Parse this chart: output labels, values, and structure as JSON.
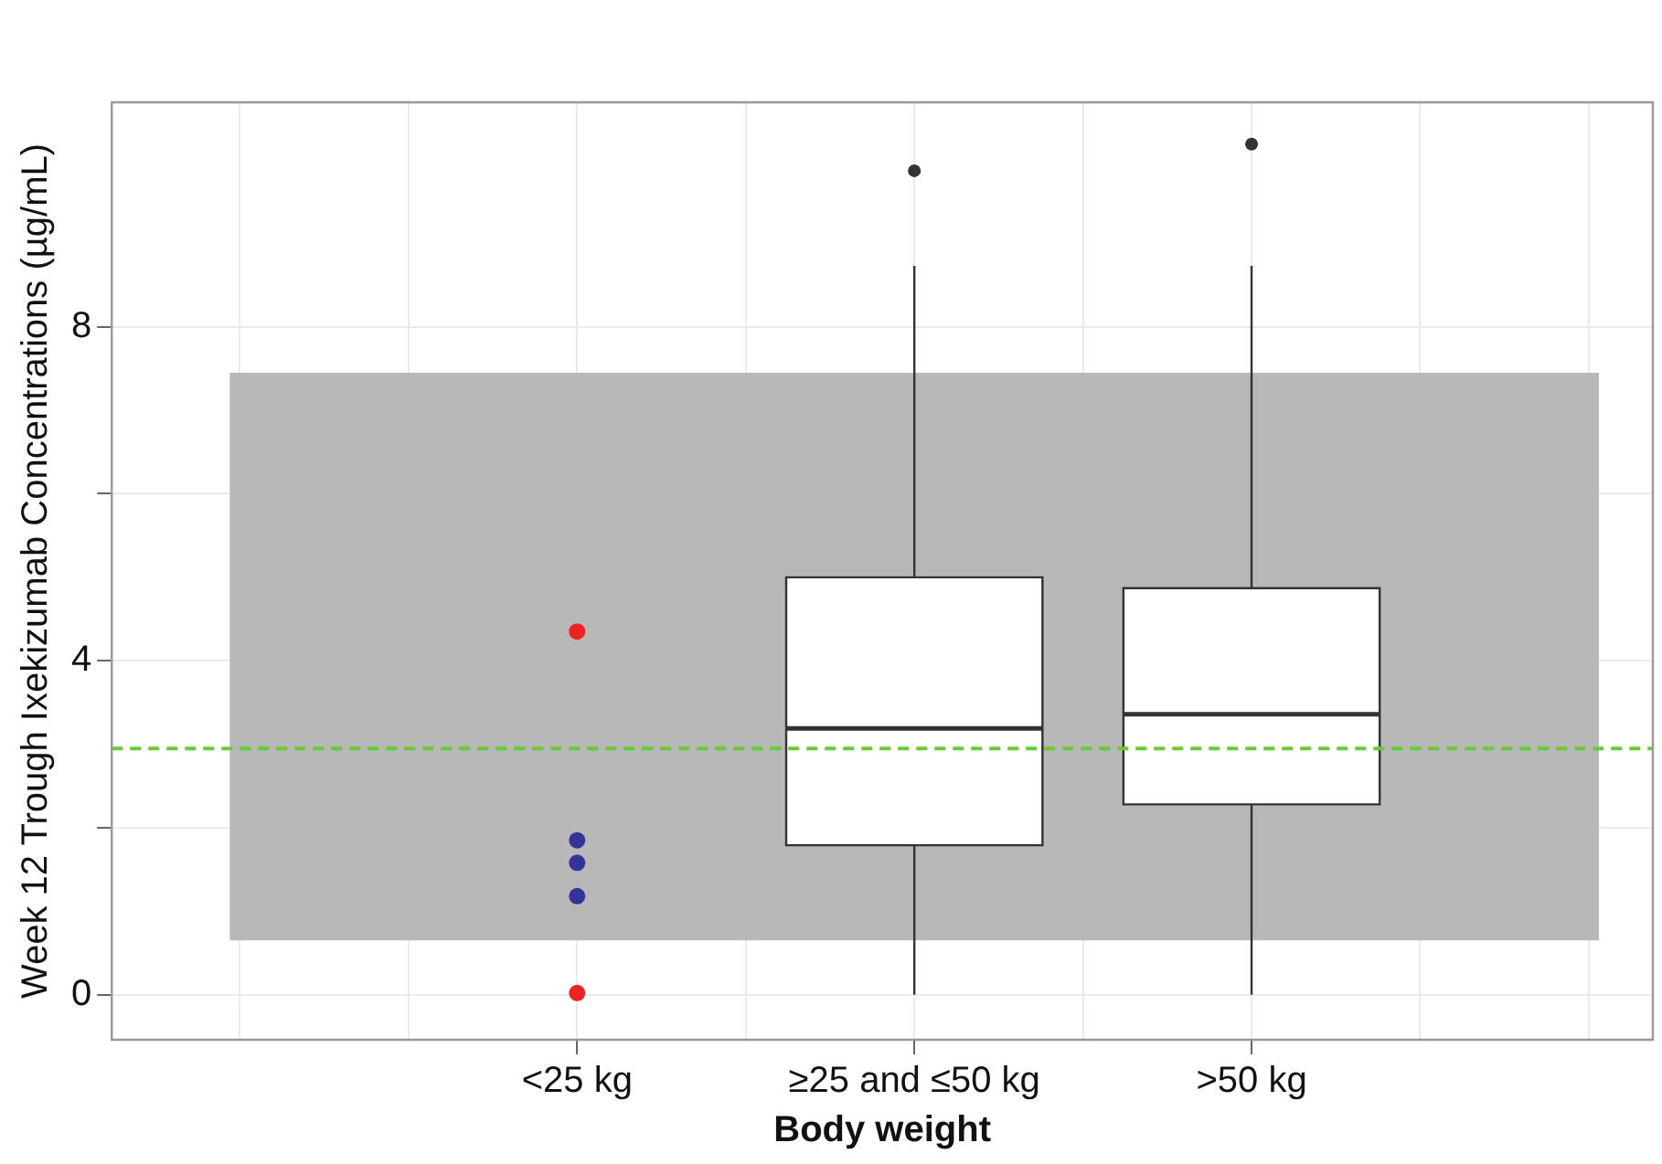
{
  "chart_data": {
    "type": "box",
    "xlabel": "Body weight",
    "ylabel": "Week 12 Trough Ixekizumab Concentrations (µg/mL)",
    "categories": [
      "<25 kg",
      "≥25 and ≤50 kg",
      ">50 kg"
    ],
    "boxes": [
      null,
      {
        "low": 0,
        "q1": 1.79,
        "median": 3.19,
        "q3": 5.0,
        "high": 8.73,
        "outliers": [
          9.87
        ]
      },
      {
        "low": 0,
        "q1": 2.28,
        "median": 3.36,
        "q3": 4.87,
        "high": 8.73,
        "outliers": [
          10.19
        ]
      }
    ],
    "series": [
      {
        "type": "scatter",
        "x": [
          "<25 kg",
          "<25 kg",
          "<25 kg",
          "<25 kg",
          "<25 kg"
        ],
        "values": [
          4.35,
          1.85,
          1.58,
          1.18,
          0.02
        ],
        "colors": [
          "#ee2222",
          "#333399",
          "#333399",
          "#333399",
          "#ee2222"
        ]
      }
    ],
    "ylim": [
      -0.54,
      10.69
    ],
    "yticks": [
      0,
      4,
      8
    ],
    "ref_lines": [
      {
        "axis": "y",
        "value": 2.95,
        "color": "#66cc33",
        "line_style": "dashed"
      }
    ],
    "bands": [
      {
        "axis": "y",
        "from": 0.65,
        "to": 7.45,
        "color": "#b8b8b8"
      }
    ],
    "grid": true
  }
}
